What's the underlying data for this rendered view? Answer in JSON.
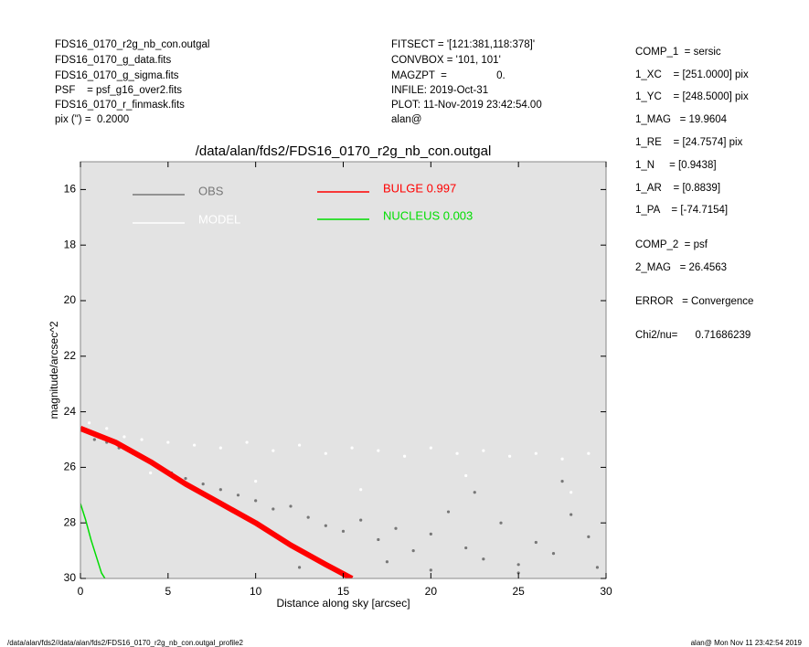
{
  "header": {
    "left": [
      "FDS16_0170_r2g_nb_con.outgal",
      "FDS16_0170_g_data.fits",
      "FDS16_0170_g_sigma.fits",
      "PSF    = psf_g16_over2.fits",
      "FDS16_0170_r_finmask.fits",
      "pix (\") =  0.2000"
    ],
    "middle": [
      "FITSECT = '[121:381,118:378]'",
      "CONVBOX = '101, 101'",
      "MAGZPT  =                 0.",
      "INFILE: 2019-Oct-31",
      "PLOT: 11-Nov-2019 23:42:54.00",
      "alan@"
    ],
    "right": [
      "COMP_1  = sersic",
      "1_XC    = [251.0000] pix",
      "1_YC    = [248.5000] pix",
      "1_MAG   = 19.9604",
      "1_RE    = [24.7574] pix",
      "1_N     = [0.9438]",
      "1_AR    = [0.8839]",
      "1_PA    = [-74.7154]",
      "COMP_2  = psf",
      "2_MAG   = 26.4563",
      "ERROR   = Convergence",
      "Chi2/nu=      0.71686239"
    ]
  },
  "footer": {
    "left": "/data/alan/fds2//data/alan/fds2/FDS16_0170_r2g_nb_con.outgal_profile2",
    "right": "alan@  Mon Nov 11 23:42:54 2019"
  },
  "chart_data": {
    "type": "scatter",
    "title": "/data/alan/fds2/FDS16_0170_r2g_nb_con.outgal",
    "x_label": "Distance along sky [arcsec]",
    "y_label": "magnitude/arcsec^2",
    "xlim": [
      0,
      30
    ],
    "ylim": [
      30,
      15
    ],
    "xticks": [
      0,
      5,
      10,
      15,
      20,
      25,
      30
    ],
    "yticks": [
      16,
      18,
      20,
      22,
      24,
      26,
      28,
      30
    ],
    "grid": false,
    "background": "#e3e3e3",
    "series": [
      {
        "name": "OBS",
        "color": "#777777",
        "style": "points",
        "x": [
          0.3,
          0.8,
          1.5,
          2.2,
          3,
          3.8,
          4.5,
          5.2,
          6,
          7,
          8,
          9,
          10,
          11,
          12,
          13,
          14,
          15,
          16,
          17,
          18,
          19,
          20,
          21,
          22,
          23,
          24,
          25,
          26,
          27,
          28,
          29,
          29.5,
          12.5,
          17.5,
          22.5,
          27.5,
          25,
          20,
          15
        ],
        "values": [
          24.7,
          25.0,
          25.1,
          25.3,
          25.5,
          25.7,
          26.0,
          26.2,
          26.4,
          26.6,
          26.8,
          27.0,
          27.2,
          27.5,
          27.4,
          27.8,
          28.1,
          28.3,
          27.9,
          28.6,
          28.2,
          29.0,
          28.4,
          27.6,
          28.9,
          29.3,
          28.0,
          29.5,
          28.7,
          29.1,
          27.7,
          28.5,
          29.6,
          29.6,
          29.4,
          26.9,
          26.5,
          29.8,
          29.7,
          29.9
        ]
      },
      {
        "name": "MODEL",
        "color": "#ffffff",
        "style": "points",
        "x": [
          0.5,
          1.5,
          2.5,
          3.5,
          5,
          6.5,
          8,
          9.5,
          11,
          12.5,
          14,
          15.5,
          17,
          18.5,
          20,
          21.5,
          23,
          24.5,
          26,
          27.5,
          29,
          4,
          10,
          16,
          22,
          28
        ],
        "values": [
          24.4,
          24.6,
          24.9,
          25.0,
          25.1,
          25.2,
          25.3,
          25.1,
          25.4,
          25.2,
          25.5,
          25.3,
          25.4,
          25.6,
          25.3,
          25.5,
          25.4,
          25.6,
          25.5,
          25.7,
          25.5,
          26.2,
          26.5,
          26.8,
          26.3,
          26.9
        ]
      },
      {
        "name": "BULGE  0.997",
        "color": "#ff0000",
        "style": "line",
        "x": [
          0,
          2,
          4,
          6,
          8,
          10,
          12,
          14,
          15.5
        ],
        "values": [
          24.6,
          25.1,
          25.8,
          26.6,
          27.3,
          28.0,
          28.8,
          29.5,
          30
        ]
      },
      {
        "name": "NUCLEUS  0.003",
        "color": "#00dd00",
        "style": "line",
        "x": [
          0,
          0.3,
          0.6,
          0.9,
          1.2,
          1.4
        ],
        "values": [
          27.3,
          27.9,
          28.6,
          29.2,
          29.8,
          30
        ]
      }
    ]
  }
}
